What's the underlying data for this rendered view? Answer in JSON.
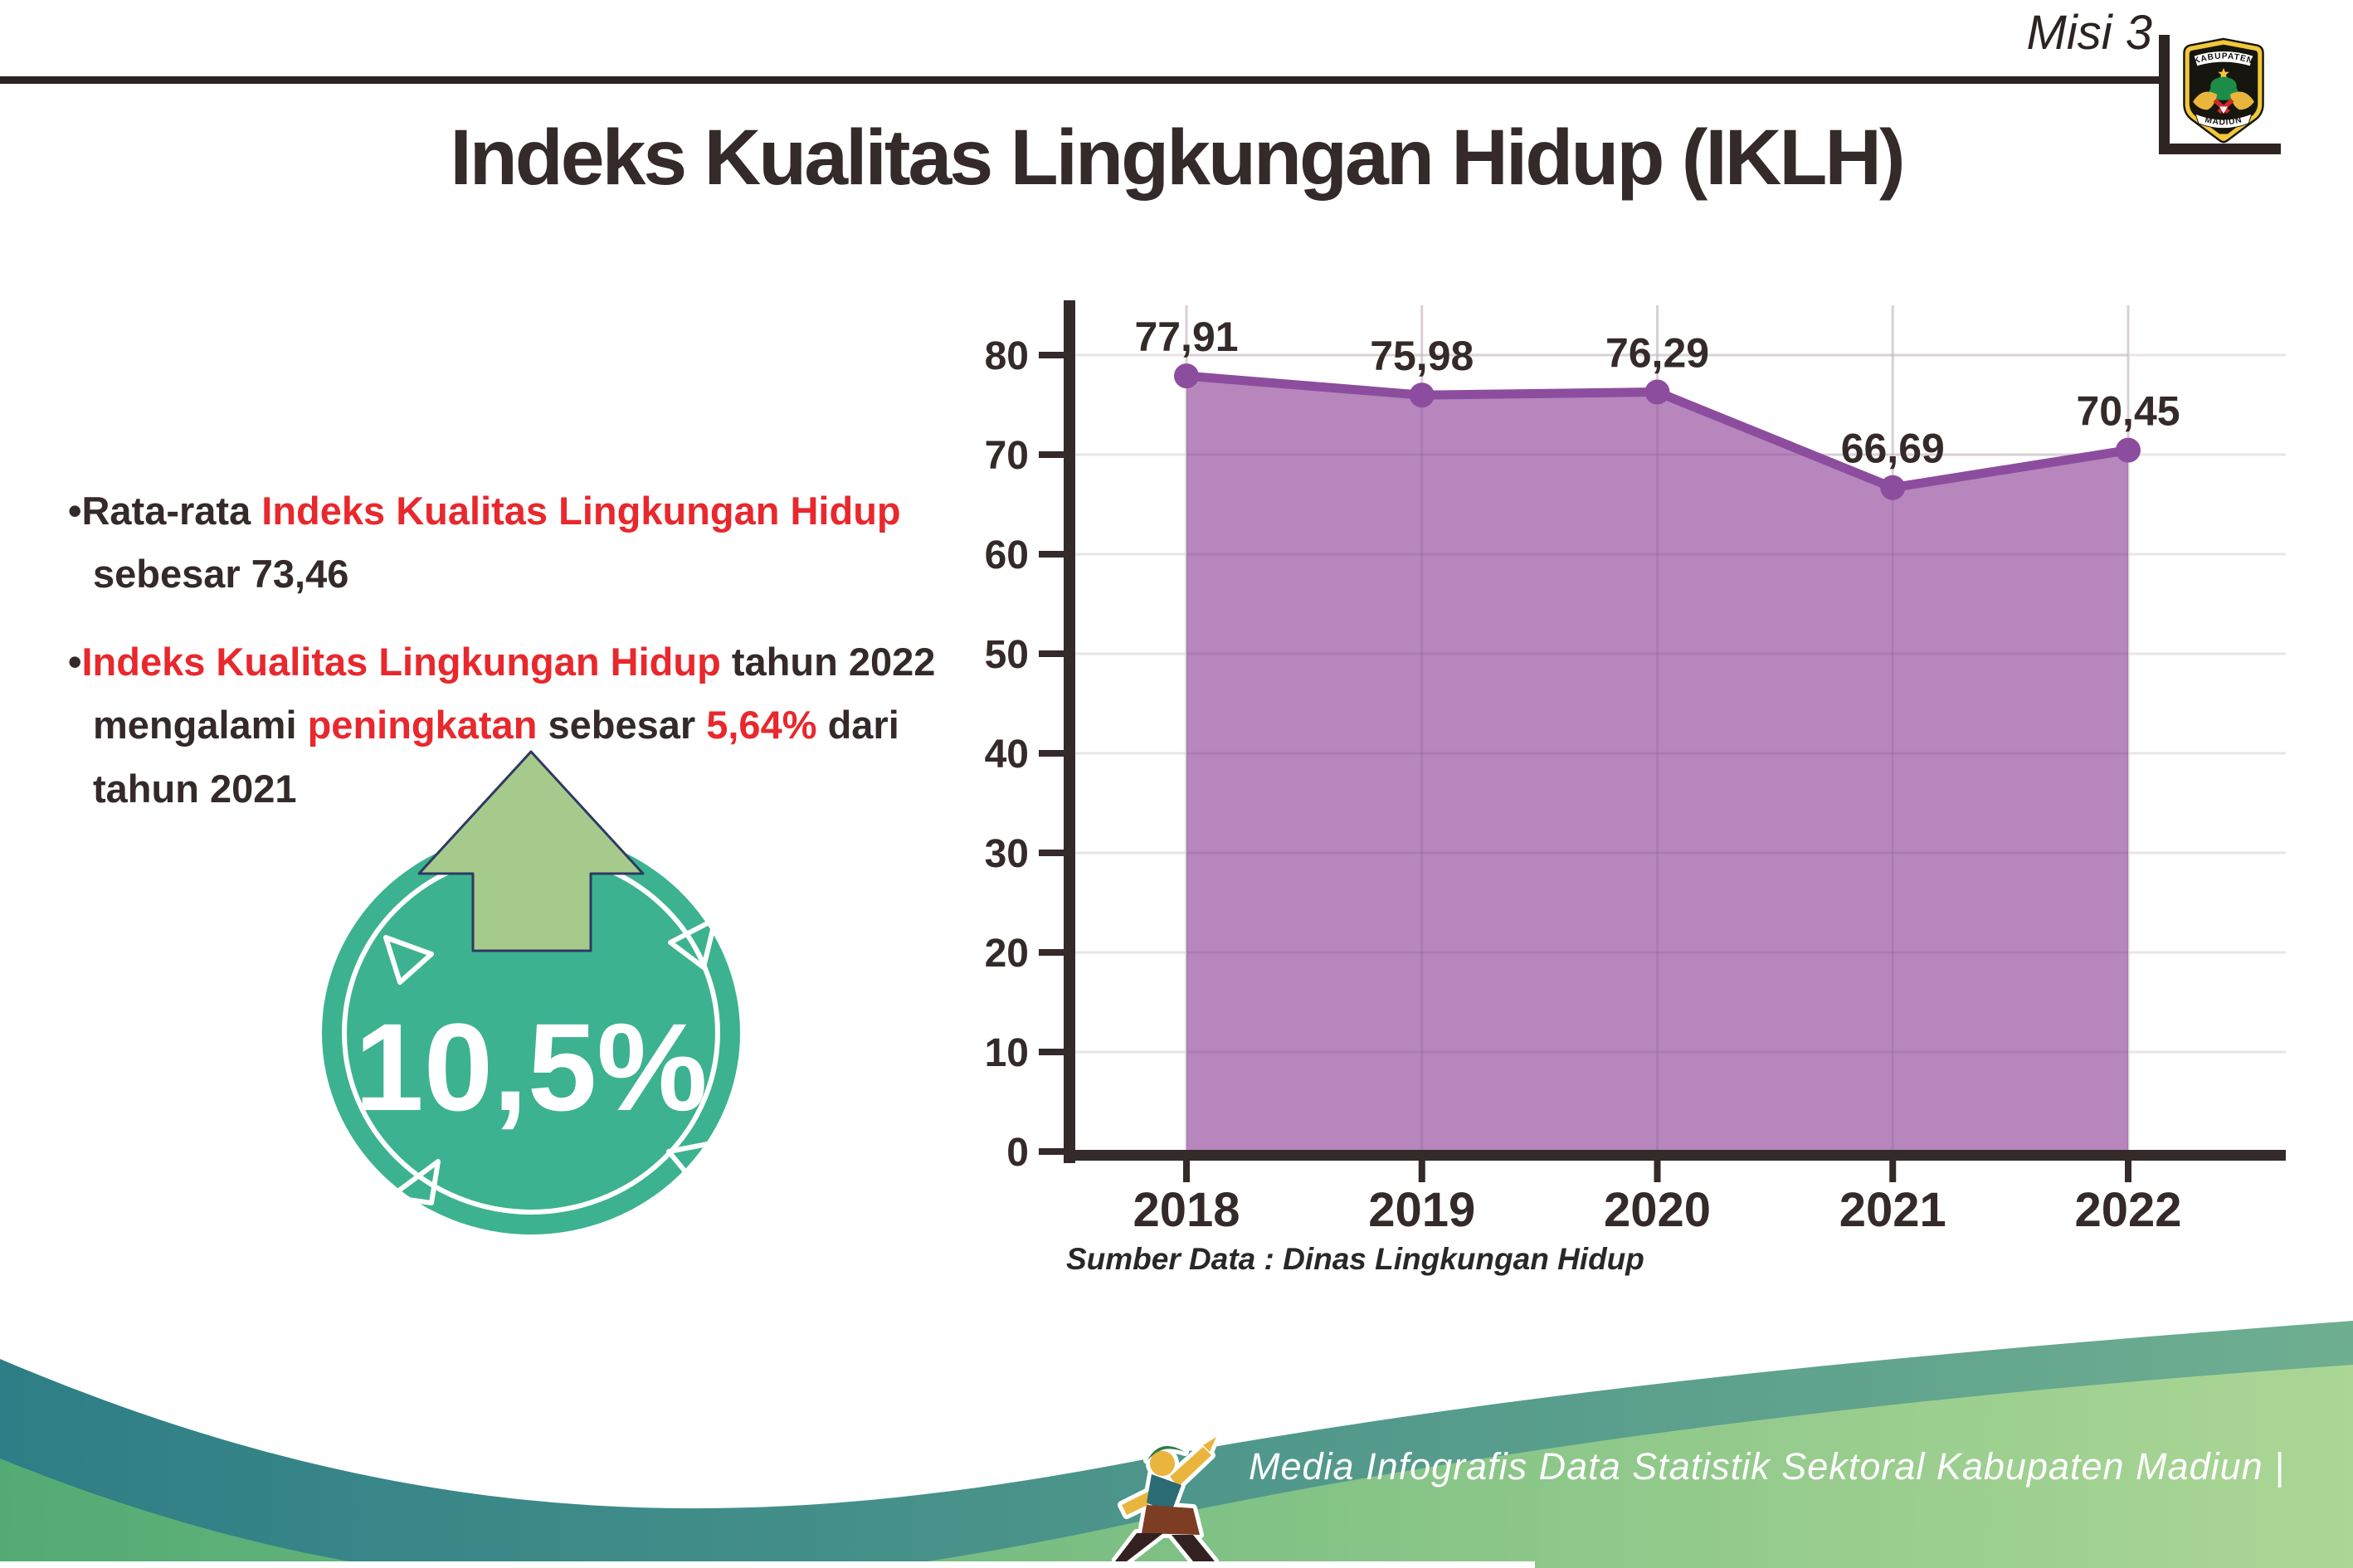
{
  "header": {
    "misi": "Misi 3",
    "logo_top": "KABUPATEN",
    "logo_bottom": "MADIUN"
  },
  "title": "Indeks Kualitas Lingkungan Hidup (IKLH)",
  "bullets": [
    {
      "marker": "•",
      "segments": [
        {
          "color": "dark",
          "text": "Rata-rata "
        },
        {
          "color": "red",
          "text": "Indeks Kualitas Lingkungan Hidup"
        },
        {
          "color": "dark",
          "text": " sebesar 73,46"
        }
      ]
    },
    {
      "marker": "•",
      "segments": [
        {
          "color": "red",
          "text": "Indeks Kualitas Lingkungan Hidup"
        },
        {
          "color": "dark",
          "text": " tahun 2022 mengalami "
        },
        {
          "color": "red",
          "text": "peningkatan"
        },
        {
          "color": "dark",
          "text": " sebesar "
        },
        {
          "color": "red",
          "text": "5,64%"
        },
        {
          "color": "dark",
          "text": " dari tahun 2021"
        }
      ]
    }
  ],
  "badge": {
    "value": "10,5%",
    "meaning": "increase-indicator"
  },
  "chart_data": {
    "type": "area",
    "title": "",
    "categories": [
      "2018",
      "2019",
      "2020",
      "2021",
      "2022"
    ],
    "values": [
      77.91,
      75.98,
      76.29,
      66.69,
      70.45
    ],
    "value_labels": [
      "77,91",
      "75,98",
      "76,29",
      "66,69",
      "70,45"
    ],
    "xlabel": "",
    "ylabel": "",
    "ylim": [
      0,
      85
    ],
    "yticks": [
      0,
      10,
      20,
      30,
      40,
      50,
      60,
      70,
      80
    ],
    "grid": true,
    "legend": false,
    "line_color": "#8d4d9e",
    "fill_color": "#b686bd",
    "source_note": "Sumber Data : Dinas Lingkungan Hidup"
  },
  "footer": {
    "text": "Media Infografis Data Statistik Sektoral Kabupaten Madiun |"
  },
  "colors": {
    "dark_text": "#342a29",
    "red_text": "#e8282d",
    "badge_teal": "#3cb291",
    "arrow_green": "#a6ca8c",
    "arrow_outline_navy": "#2e3a63",
    "chart_line_purple": "#8d4d9e",
    "chart_fill_mauve": "#b686bd",
    "footer_teal_left": "#2d7e86",
    "footer_teal_right": "#6fae90",
    "footer_green_left": "#53ab74",
    "footer_green_right": "#abd695"
  }
}
